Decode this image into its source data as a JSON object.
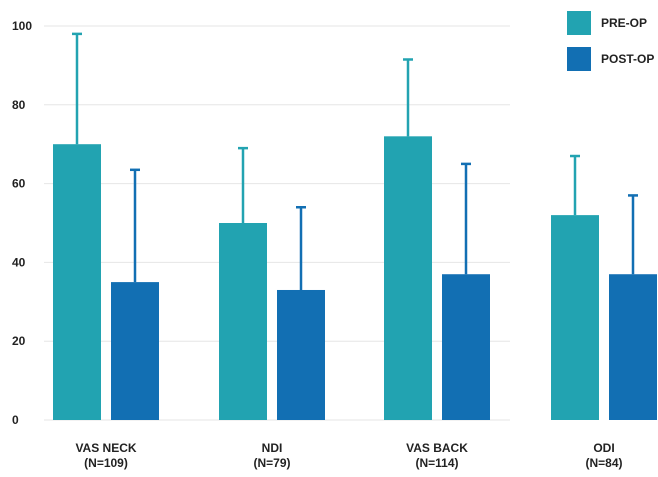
{
  "chart_data": {
    "type": "bar",
    "categories": [
      "VAS NECK",
      "NDI",
      "VAS BACK",
      "ODI"
    ],
    "category_sublabels": [
      "(N=109)",
      "(N=79)",
      "(N=114)",
      "(N=84)"
    ],
    "series": [
      {
        "name": "PRE-OP",
        "color": "#22a3b1",
        "values": [
          70,
          50,
          72,
          52
        ],
        "error_upper": [
          98,
          69,
          91.5,
          67
        ]
      },
      {
        "name": "POST-OP",
        "color": "#126fb3",
        "values": [
          35,
          33,
          37,
          37
        ],
        "error_upper": [
          63.5,
          54,
          65,
          57
        ]
      }
    ],
    "yticks": [
      0,
      20,
      40,
      60,
      80,
      100
    ],
    "ylim": [
      0,
      100
    ],
    "grid": "horizontal",
    "legend_position": "top-right",
    "title": "",
    "xlabel": "",
    "ylabel": ""
  }
}
